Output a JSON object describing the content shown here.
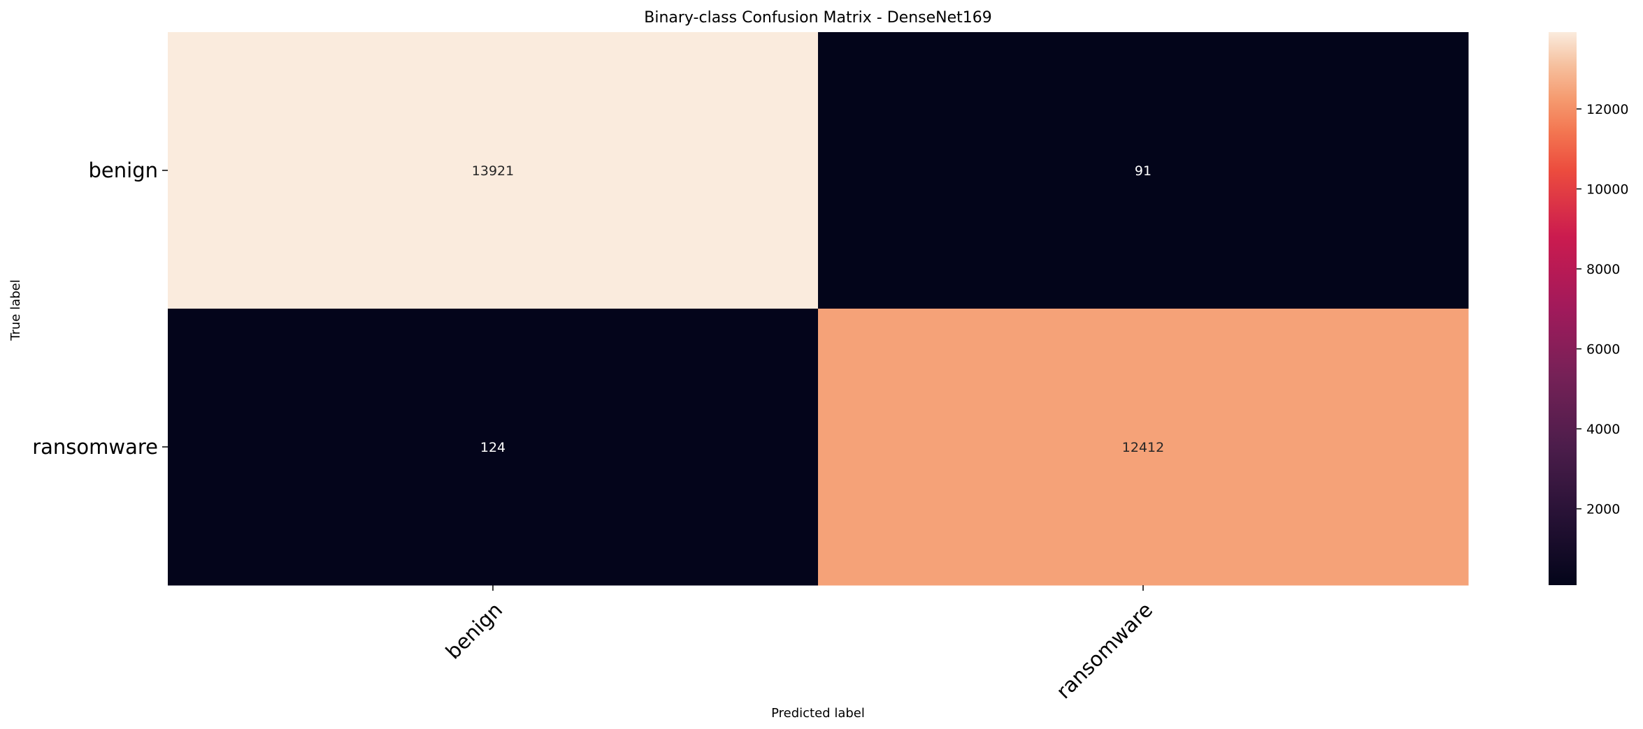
{
  "chart_data": {
    "type": "heatmap",
    "title": "Binary-class Confusion Matrix - DenseNet169",
    "xlabel": "Predicted label",
    "ylabel": "True label",
    "x_categories": [
      "benign",
      "ransomware"
    ],
    "y_categories": [
      "benign",
      "ransomware"
    ],
    "values": [
      [
        13921,
        91
      ],
      [
        124,
        12412
      ]
    ],
    "colorbar": {
      "min": 91,
      "max": 13921,
      "ticks": [
        2000,
        4000,
        6000,
        8000,
        10000,
        12000
      ],
      "colormap": "rocket"
    },
    "grid": false,
    "legend": "colorbar-right"
  }
}
